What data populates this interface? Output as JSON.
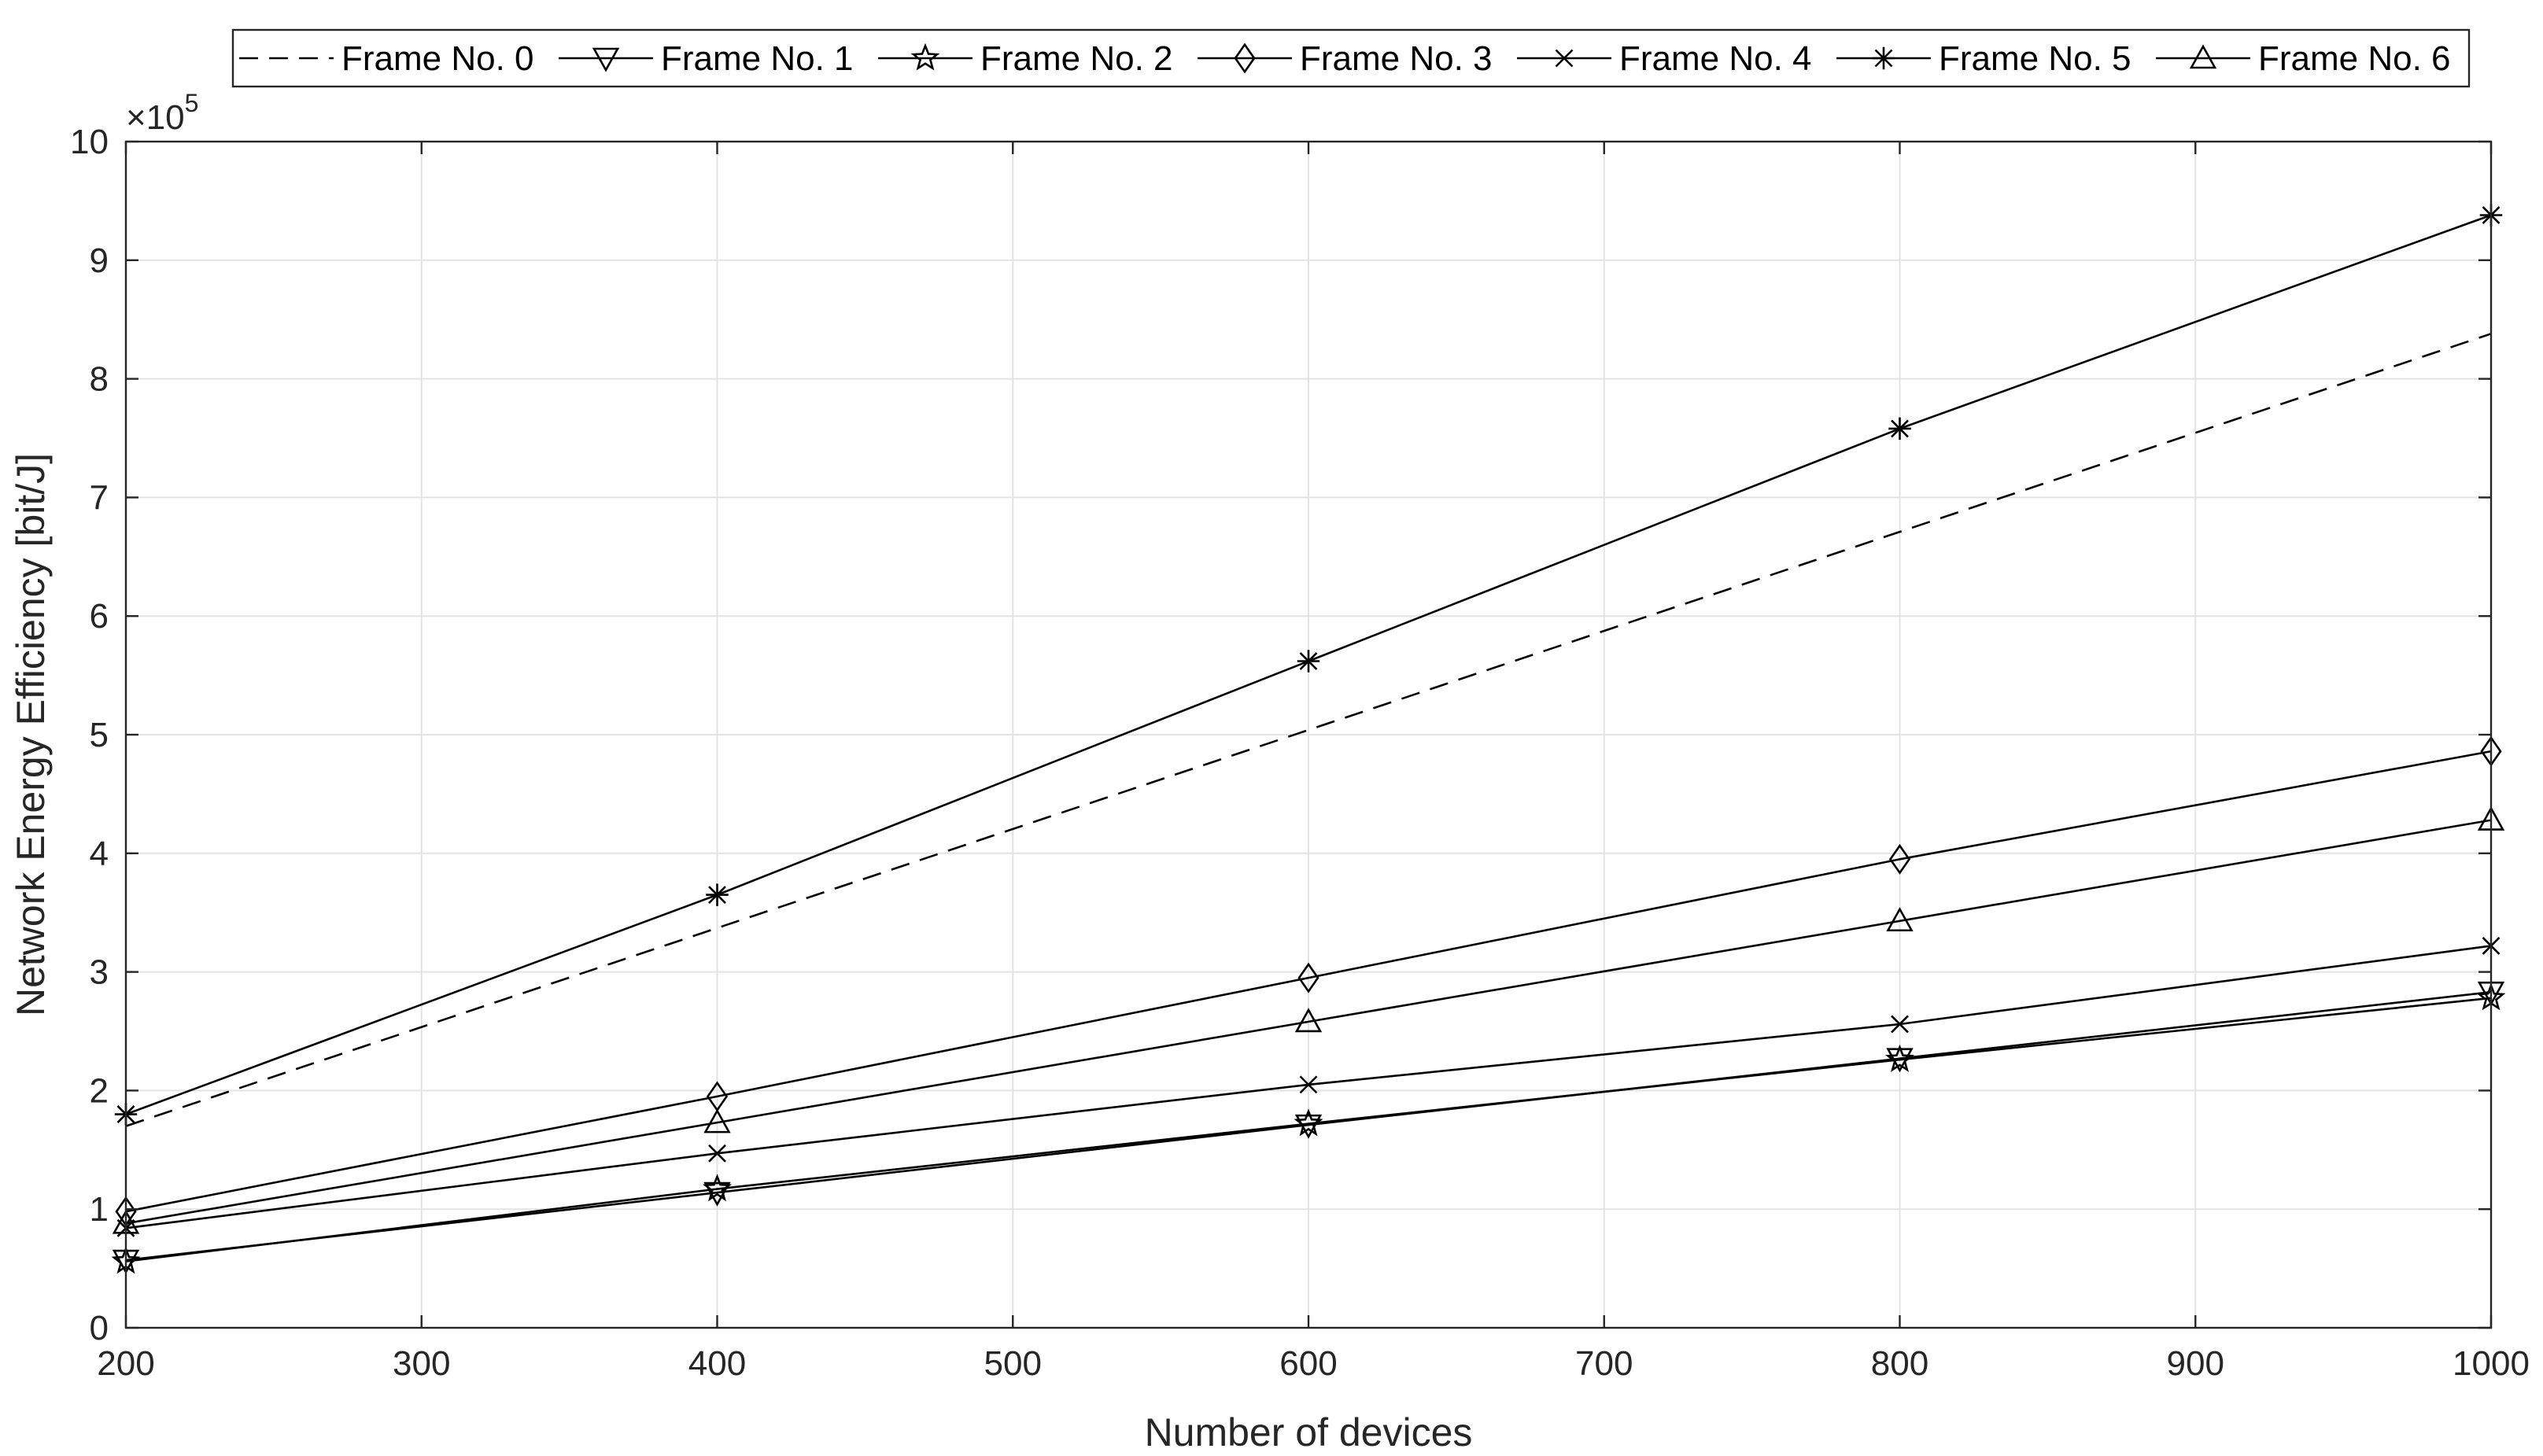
{
  "chart_data": {
    "type": "line",
    "xlabel": "Number of devices",
    "ylabel": "Network Energy Efficiency [bit/J]",
    "y_exponent_base": "×10",
    "y_exponent_power": "5",
    "xlim": [
      200,
      1000
    ],
    "ylim": [
      0,
      10
    ],
    "x_ticks": [
      200,
      300,
      400,
      500,
      600,
      700,
      800,
      900,
      1000
    ],
    "y_ticks": [
      0,
      1,
      2,
      3,
      4,
      5,
      6,
      7,
      8,
      9,
      10
    ],
    "grid": true,
    "legend_placement": "top, horizontal",
    "x": [
      200,
      400,
      600,
      800,
      1000
    ],
    "series": [
      {
        "name": "Frame No. 0",
        "values": [
          1.7,
          3.37,
          5.04,
          6.71,
          8.38
        ],
        "marker": "none",
        "dash": true
      },
      {
        "name": "Frame No. 1",
        "values": [
          0.57,
          1.14,
          1.71,
          2.27,
          2.83
        ],
        "marker": "triangle-down",
        "dash": false
      },
      {
        "name": "Frame No. 2",
        "values": [
          0.56,
          1.17,
          1.72,
          2.26,
          2.78
        ],
        "marker": "pentagram",
        "dash": false
      },
      {
        "name": "Frame No. 3",
        "values": [
          0.98,
          1.95,
          2.95,
          3.95,
          4.86
        ],
        "marker": "diamond",
        "dash": false
      },
      {
        "name": "Frame No. 4",
        "values": [
          0.84,
          1.47,
          2.05,
          2.56,
          3.22
        ],
        "marker": "x",
        "dash": false
      },
      {
        "name": "Frame No. 5",
        "values": [
          1.8,
          3.65,
          5.62,
          7.58,
          9.38
        ],
        "marker": "asterisk",
        "dash": false
      },
      {
        "name": "Frame No. 6",
        "values": [
          0.88,
          1.73,
          2.58,
          3.43,
          4.28
        ],
        "marker": "triangle-up",
        "dash": false
      }
    ],
    "colors": {
      "lines": "#000000",
      "axes": "#262626",
      "grid": "#e3e3e3",
      "background": "#ffffff"
    }
  }
}
